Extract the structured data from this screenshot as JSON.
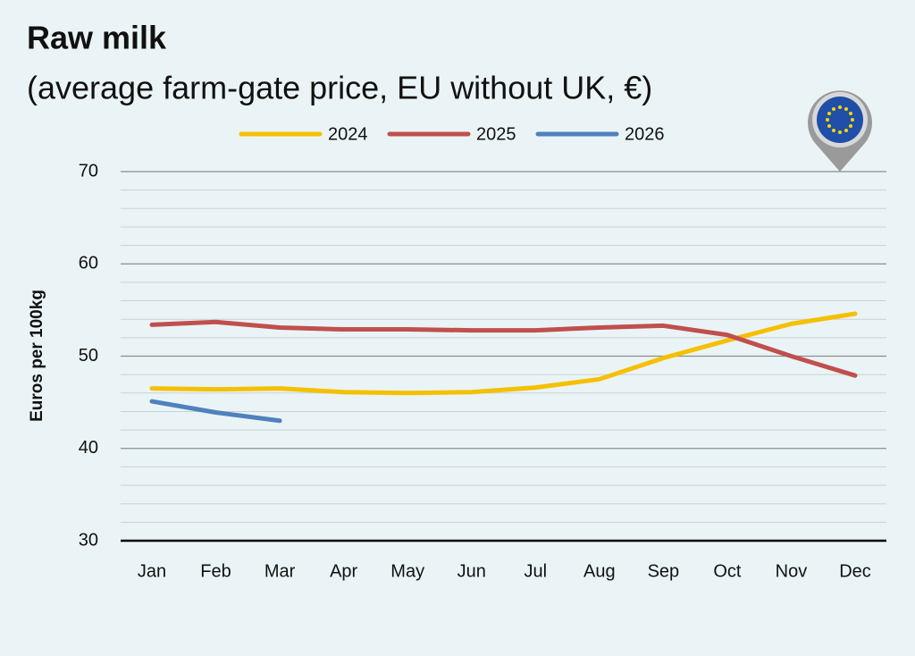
{
  "chart_data": {
    "type": "line",
    "title": "Raw milk",
    "subtitle": "(average farm-gate price, EU without UK, €)",
    "y_label": "Euros per 100kg",
    "categories": [
      "Jan",
      "Feb",
      "Mar",
      "Apr",
      "May",
      "Jun",
      "Jul",
      "Aug",
      "Sep",
      "Oct",
      "Nov",
      "Dec"
    ],
    "series": [
      {
        "name": "2024",
        "color": "#f5c000",
        "values": [
          46.5,
          46.4,
          46.5,
          46.1,
          46.0,
          46.1,
          46.6,
          47.5,
          49.8,
          51.7,
          53.5,
          54.6
        ]
      },
      {
        "name": "2025",
        "color": "#c0504d",
        "values": [
          53.4,
          53.7,
          53.1,
          52.9,
          52.9,
          52.8,
          52.8,
          53.1,
          53.3,
          52.3,
          50.0,
          47.9
        ]
      },
      {
        "name": "2026",
        "color": "#4f81bd",
        "values": [
          45.1,
          43.9,
          43.0,
          null,
          null,
          null,
          null,
          null,
          null,
          null,
          null,
          null
        ]
      }
    ],
    "ylim": [
      30,
      70
    ],
    "yticks": [
      30,
      40,
      50,
      60,
      70
    ],
    "grid": true,
    "legend": "top"
  }
}
